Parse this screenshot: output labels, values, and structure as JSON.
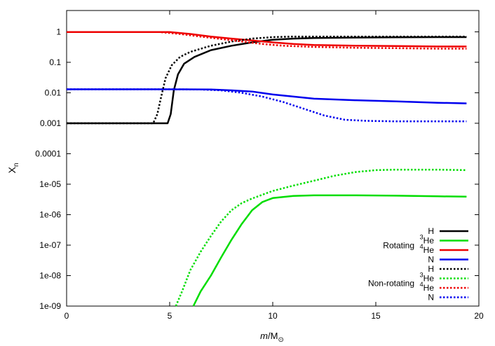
{
  "chart_data": {
    "type": "line",
    "xlabel_italic": "m",
    "xlabel_rest": "/M",
    "xlabel_symbol": "⊙",
    "ylabel": "X",
    "ylabel_sub": "n",
    "xlim": [
      0,
      20
    ],
    "ylim": [
      1e-09,
      5
    ],
    "yscale": "log",
    "x_ticks": [
      "0",
      "5",
      "10",
      "15",
      "20"
    ],
    "y_ticks": [
      {
        "value": 1,
        "label": "1"
      },
      {
        "value": 0.1,
        "label": "0.1"
      },
      {
        "value": 0.01,
        "label": "0.01"
      },
      {
        "value": 0.001,
        "label": "0.001"
      },
      {
        "value": 0.0001,
        "label": "0.0001"
      },
      {
        "value": 1e-05,
        "label": "1e-05"
      },
      {
        "value": 1e-06,
        "label": "1e-06"
      },
      {
        "value": 1e-07,
        "label": "1e-07"
      },
      {
        "value": 1e-08,
        "label": "1e-08"
      },
      {
        "value": 1e-09,
        "label": "1e-09"
      }
    ],
    "grid": false,
    "legend_placement": "bottom-right",
    "legend_groups": [
      {
        "title": "Rotating",
        "style": "solid"
      },
      {
        "title": "Non-rotating",
        "style": "dotted"
      }
    ],
    "series": [
      {
        "name": "H",
        "mass": "",
        "color": "#000000",
        "style": "solid",
        "group": 0,
        "points": [
          [
            0,
            0.001
          ],
          [
            4.9,
            0.001
          ],
          [
            5.05,
            0.002
          ],
          [
            5.2,
            0.012
          ],
          [
            5.4,
            0.04
          ],
          [
            5.7,
            0.09
          ],
          [
            6.2,
            0.15
          ],
          [
            7,
            0.25
          ],
          [
            8,
            0.35
          ],
          [
            9,
            0.45
          ],
          [
            10,
            0.55
          ],
          [
            11,
            0.6
          ],
          [
            12,
            0.63
          ],
          [
            14,
            0.65
          ],
          [
            16,
            0.66
          ],
          [
            18,
            0.67
          ],
          [
            19.4,
            0.67
          ]
        ]
      },
      {
        "name": "He",
        "mass": "3",
        "color": "#00dd00",
        "style": "solid",
        "group": 0,
        "points": [
          [
            6.15,
            1e-09
          ],
          [
            6.5,
            3e-09
          ],
          [
            7,
            1e-08
          ],
          [
            7.5,
            4e-08
          ],
          [
            8,
            1.5e-07
          ],
          [
            8.5,
            5e-07
          ],
          [
            9,
            1.4e-06
          ],
          [
            9.5,
            2.6e-06
          ],
          [
            10,
            3.5e-06
          ],
          [
            11,
            4.1e-06
          ],
          [
            12,
            4.3e-06
          ],
          [
            14,
            4.3e-06
          ],
          [
            16,
            4.2e-06
          ],
          [
            18,
            4e-06
          ],
          [
            19.4,
            3.9e-06
          ]
        ]
      },
      {
        "name": "He",
        "mass": "4",
        "color": "#ee0000",
        "style": "solid",
        "group": 0,
        "points": [
          [
            0,
            0.98
          ],
          [
            5,
            0.98
          ],
          [
            6,
            0.85
          ],
          [
            7,
            0.7
          ],
          [
            8,
            0.6
          ],
          [
            9,
            0.52
          ],
          [
            10,
            0.45
          ],
          [
            11,
            0.4
          ],
          [
            12,
            0.37
          ],
          [
            14,
            0.35
          ],
          [
            16,
            0.34
          ],
          [
            18,
            0.33
          ],
          [
            19.4,
            0.33
          ]
        ]
      },
      {
        "name": "N",
        "mass": "",
        "color": "#0000ee",
        "style": "solid",
        "group": 0,
        "points": [
          [
            0,
            0.013
          ],
          [
            5,
            0.013
          ],
          [
            7,
            0.0128
          ],
          [
            8,
            0.012
          ],
          [
            9,
            0.011
          ],
          [
            10,
            0.0088
          ],
          [
            11,
            0.0075
          ],
          [
            12,
            0.0064
          ],
          [
            14,
            0.0057
          ],
          [
            16,
            0.0052
          ],
          [
            18,
            0.0047
          ],
          [
            19.4,
            0.0045
          ]
        ]
      },
      {
        "name": "H",
        "mass": "",
        "color": "#000000",
        "style": "dotted",
        "group": 1,
        "points": [
          [
            0,
            0.001
          ],
          [
            4.2,
            0.001
          ],
          [
            4.4,
            0.002
          ],
          [
            4.6,
            0.008
          ],
          [
            4.8,
            0.03
          ],
          [
            5.1,
            0.08
          ],
          [
            5.5,
            0.15
          ],
          [
            6,
            0.22
          ],
          [
            7,
            0.35
          ],
          [
            8,
            0.48
          ],
          [
            9,
            0.6
          ],
          [
            10,
            0.67
          ],
          [
            11,
            0.7
          ],
          [
            12,
            0.7
          ],
          [
            14,
            0.7
          ],
          [
            16,
            0.7
          ],
          [
            18,
            0.7
          ],
          [
            19.4,
            0.7
          ]
        ]
      },
      {
        "name": "He",
        "mass": "3",
        "color": "#00dd00",
        "style": "dotted",
        "group": 1,
        "points": [
          [
            5.3,
            1e-09
          ],
          [
            5.6,
            3e-09
          ],
          [
            6,
            1.5e-08
          ],
          [
            6.5,
            6e-08
          ],
          [
            7,
            2e-07
          ],
          [
            7.5,
            6e-07
          ],
          [
            8,
            1.4e-06
          ],
          [
            8.5,
            2.4e-06
          ],
          [
            9,
            3.4e-06
          ],
          [
            10,
            6e-06
          ],
          [
            11,
            9e-06
          ],
          [
            12,
            1.3e-05
          ],
          [
            13,
            1.9e-05
          ],
          [
            14,
            2.5e-05
          ],
          [
            15,
            2.9e-05
          ],
          [
            16,
            3e-05
          ],
          [
            18,
            3e-05
          ],
          [
            19.4,
            2.9e-05
          ]
        ]
      },
      {
        "name": "He",
        "mass": "4",
        "color": "#ee0000",
        "style": "dotted",
        "group": 1,
        "points": [
          [
            0,
            0.98
          ],
          [
            4.5,
            0.98
          ],
          [
            5.5,
            0.85
          ],
          [
            6.5,
            0.7
          ],
          [
            7.5,
            0.58
          ],
          [
            8.5,
            0.48
          ],
          [
            9.5,
            0.4
          ],
          [
            10.5,
            0.35
          ],
          [
            12,
            0.32
          ],
          [
            14,
            0.3
          ],
          [
            16,
            0.29
          ],
          [
            18,
            0.28
          ],
          [
            19.4,
            0.28
          ]
        ]
      },
      {
        "name": "N",
        "mass": "",
        "color": "#0000ee",
        "style": "dotted",
        "group": 1,
        "points": [
          [
            0,
            0.013
          ],
          [
            5,
            0.013
          ],
          [
            6.5,
            0.0128
          ],
          [
            7.5,
            0.012
          ],
          [
            8.5,
            0.01
          ],
          [
            9.5,
            0.0075
          ],
          [
            10.5,
            0.005
          ],
          [
            11.5,
            0.003
          ],
          [
            12.5,
            0.0018
          ],
          [
            13.5,
            0.0013
          ],
          [
            14.5,
            0.0012
          ],
          [
            16,
            0.00115
          ],
          [
            18,
            0.00115
          ],
          [
            19.4,
            0.00115
          ]
        ]
      }
    ]
  }
}
